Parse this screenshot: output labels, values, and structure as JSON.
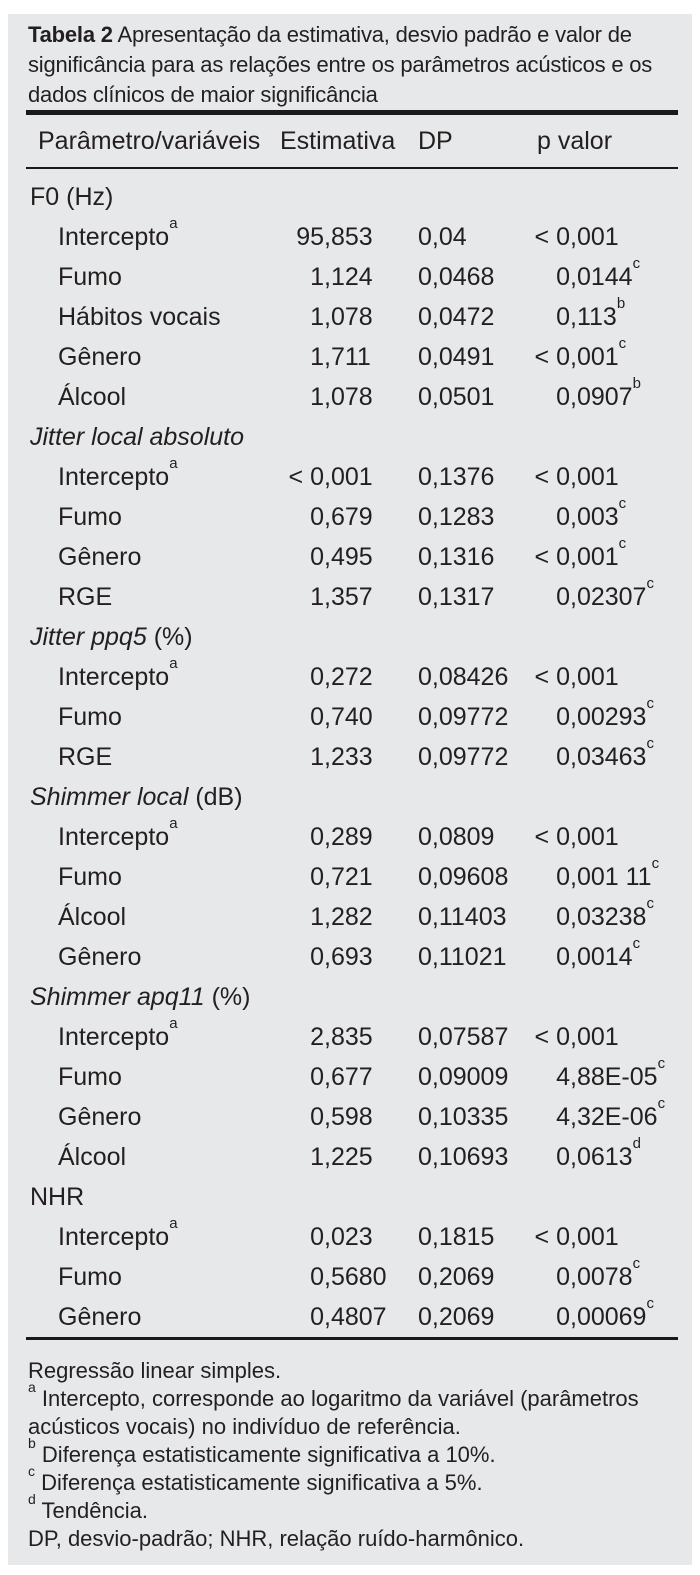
{
  "caption": {
    "label": "Tabela 2",
    "text": "Apresentação da estimativa, desvio padrão e valor de significância para as relações entre os parâmetros acústicos e os dados clínicos de maior significância"
  },
  "table": {
    "columns": [
      "Parâmetro/variáveis",
      "Estimativa",
      "DP",
      "p valor"
    ],
    "sections": [
      {
        "label_italic": "",
        "label_regular": "F0 (Hz)",
        "rows": [
          {
            "param": "Intercepto",
            "param_sup": "a",
            "estimativa": "95,853",
            "dp": "0,04",
            "p": "< 0,001",
            "p_sup": ""
          },
          {
            "param": "Fumo",
            "param_sup": "",
            "estimativa": "1,124",
            "dp": "0,0468",
            "p": "0,0144",
            "p_sup": "c"
          },
          {
            "param": "Hábitos vocais",
            "param_sup": "",
            "estimativa": "1,078",
            "dp": "0,0472",
            "p": "0,113",
            "p_sup": "b"
          },
          {
            "param": "Gênero",
            "param_sup": "",
            "estimativa": "1,711",
            "dp": "0,0491",
            "p": "< 0,001",
            "p_sup": "c"
          },
          {
            "param": "Álcool",
            "param_sup": "",
            "estimativa": "1,078",
            "dp": "0,0501",
            "p": "0,0907",
            "p_sup": "b"
          }
        ]
      },
      {
        "label_italic": "Jitter local absoluto",
        "label_regular": "",
        "rows": [
          {
            "param": "Intercepto",
            "param_sup": "a",
            "estimativa": "< 0,001",
            "dp": "0,1376",
            "p": "< 0,001",
            "p_sup": ""
          },
          {
            "param": "Fumo",
            "param_sup": "",
            "estimativa": "0,679",
            "dp": "0,1283",
            "p": "0,003",
            "p_sup": "c"
          },
          {
            "param": "Gênero",
            "param_sup": "",
            "estimativa": "0,495",
            "dp": "0,1316",
            "p": "< 0,001",
            "p_sup": "c"
          },
          {
            "param": "RGE",
            "param_sup": "",
            "estimativa": "1,357",
            "dp": "0,1317",
            "p": "0,02307",
            "p_sup": "c"
          }
        ]
      },
      {
        "label_italic": "Jitter ppq5",
        "label_regular": " (%)",
        "rows": [
          {
            "param": "Intercepto",
            "param_sup": "a",
            "estimativa": "0,272",
            "dp": "0,08426",
            "p": "< 0,001",
            "p_sup": ""
          },
          {
            "param": "Fumo",
            "param_sup": "",
            "estimativa": "0,740",
            "dp": "0,09772",
            "p": "0,00293",
            "p_sup": "c"
          },
          {
            "param": "RGE",
            "param_sup": "",
            "estimativa": "1,233",
            "dp": "0,09772",
            "p": "0,03463",
            "p_sup": "c"
          }
        ]
      },
      {
        "label_italic": "Shimmer local",
        "label_regular": " (dB)",
        "rows": [
          {
            "param": "Intercepto",
            "param_sup": "a",
            "estimativa": "0,289",
            "dp": "0,0809",
            "p": "< 0,001",
            "p_sup": ""
          },
          {
            "param": "Fumo",
            "param_sup": "",
            "estimativa": "0,721",
            "dp": "0,09608",
            "p": "0,001 11",
            "p_sup": "c"
          },
          {
            "param": "Álcool",
            "param_sup": "",
            "estimativa": "1,282",
            "dp": "0,11403",
            "p": "0,03238",
            "p_sup": "c"
          },
          {
            "param": "Gênero",
            "param_sup": "",
            "estimativa": "0,693",
            "dp": "0,11021",
            "p": "0,0014",
            "p_sup": "c"
          }
        ]
      },
      {
        "label_italic": "Shimmer apq11",
        "label_regular": " (%)",
        "rows": [
          {
            "param": "Intercepto",
            "param_sup": "a",
            "estimativa": "2,835",
            "dp": "0,07587",
            "p": "< 0,001",
            "p_sup": ""
          },
          {
            "param": "Fumo",
            "param_sup": "",
            "estimativa": "0,677",
            "dp": "0,09009",
            "p": "4,88E-05",
            "p_sup": "c"
          },
          {
            "param": "Gênero",
            "param_sup": "",
            "estimativa": "0,598",
            "dp": "0,10335",
            "p": "4,32E-06",
            "p_sup": "c"
          },
          {
            "param": "Álcool",
            "param_sup": "",
            "estimativa": "1,225",
            "dp": "0,10693",
            "p": "0,0613",
            "p_sup": "d"
          }
        ]
      },
      {
        "label_italic": "",
        "label_regular": "NHR",
        "rows": [
          {
            "param": "Intercepto",
            "param_sup": "a",
            "estimativa": "0,023",
            "dp": "0,1815",
            "p": "< 0,001",
            "p_sup": ""
          },
          {
            "param": "Fumo",
            "param_sup": "",
            "estimativa": "0,5680",
            "dp": "0,2069",
            "p": "0,0078",
            "p_sup": "c"
          },
          {
            "param": "Gênero",
            "param_sup": "",
            "estimativa": "0,4807",
            "dp": "0,2069",
            "p": "0,00069",
            "p_sup": "c"
          }
        ]
      }
    ]
  },
  "footnotes": [
    {
      "sup": "",
      "text": "Regressão linear simples."
    },
    {
      "sup": "a",
      "text": "Intercepto, corresponde ao logaritmo da variável (parâmetros acústicos vocais) no indivíduo de referência."
    },
    {
      "sup": "b",
      "text": "Diferença estatisticamente significativa a 10%."
    },
    {
      "sup": "c",
      "text": "Diferença estatisticamente significativa a 5%."
    },
    {
      "sup": "d",
      "text": "Tendência."
    },
    {
      "sup": "",
      "text": "DP, desvio-padrão; NHR, relação ruído-harmônico."
    }
  ],
  "colors": {
    "panel_background": "#e7e8e9",
    "text": "#231f20",
    "rule": "#1a1a1a"
  }
}
